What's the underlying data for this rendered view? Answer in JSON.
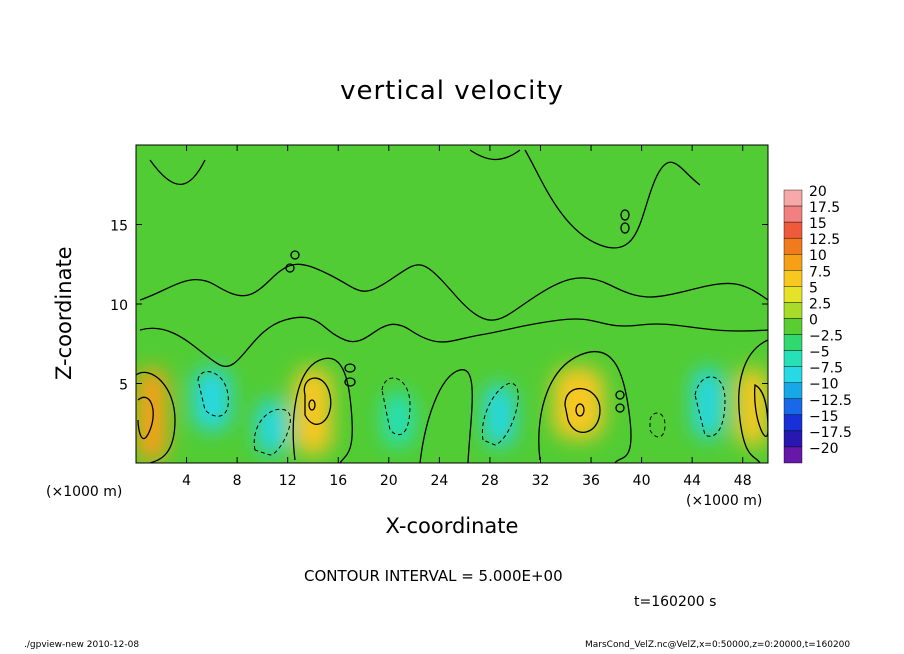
{
  "chart_data": {
    "type": "heatmap",
    "title": "vertical velocity",
    "xlabel": "X-coordinate",
    "ylabel": "Z-coordinate",
    "x_unit": "(×1000 m)",
    "xlim": [
      0,
      50
    ],
    "ylim": [
      0,
      20
    ],
    "x_ticks": [
      4,
      8,
      12,
      16,
      20,
      24,
      28,
      32,
      36,
      40,
      44,
      48
    ],
    "y_ticks": [
      5,
      10,
      15
    ],
    "colorbar": {
      "labels": [
        "20",
        "17.5",
        "15",
        "12.5",
        "10",
        "7.5",
        "5",
        "2.5",
        "0",
        "−2.5",
        "−5",
        "−7.5",
        "−10",
        "−12.5",
        "−15",
        "−17.5",
        "−20"
      ],
      "colors": [
        "#f7a8a8",
        "#f38080",
        "#ee5a3c",
        "#f07a1e",
        "#f6a018",
        "#f8c820",
        "#e6e22a",
        "#a8dc28",
        "#5acd32",
        "#30d870",
        "#28e0b8",
        "#28d8e4",
        "#18a8e8",
        "#1868e8",
        "#1830d8",
        "#2818b0",
        "#6818a8"
      ]
    },
    "cells": [
      {
        "x0": 0,
        "x1": 2.5,
        "y0": 0,
        "y1": 6,
        "value": 10
      },
      {
        "x0": 4.5,
        "x1": 7.5,
        "y0": 2,
        "y1": 6,
        "value": -7.5
      },
      {
        "x0": 9.5,
        "x1": 12,
        "y0": 0.5,
        "y1": 4,
        "value": -7.5
      },
      {
        "x0": 12.5,
        "x1": 15.5,
        "y0": 0.5,
        "y1": 6,
        "value": 7.5
      },
      {
        "x0": 19.5,
        "x1": 22,
        "y0": 1,
        "y1": 4.5,
        "value": -5
      },
      {
        "x0": 27.5,
        "x1": 30,
        "y0": 1,
        "y1": 5,
        "value": -7.5
      },
      {
        "x0": 33,
        "x1": 37,
        "y0": 1.5,
        "y1": 6,
        "value": 7.5
      },
      {
        "x0": 44,
        "x1": 46.5,
        "y0": 1.5,
        "y1": 6,
        "value": -7.5
      },
      {
        "x0": 47.5,
        "x1": 50,
        "y0": 1,
        "y1": 6,
        "value": 7.5
      }
    ],
    "contour_interval": "CONTOUR INTERVAL = 5.000E+00"
  },
  "annotations": {
    "time": "t=160200 s",
    "footer_left": "./gpview-new   2010-12-08",
    "footer_right": "MarsCond_VelZ.nc@VelZ,x=0:50000,z=0:20000,t=160200"
  }
}
